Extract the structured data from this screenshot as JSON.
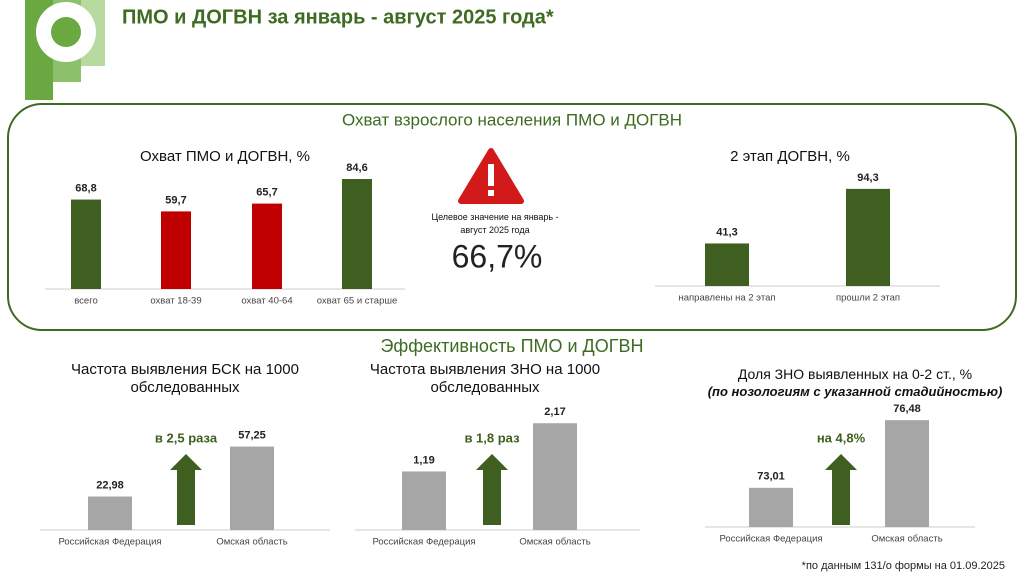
{
  "header": {
    "title": "ПМО и ДОГВН за январь - август 2025 года*"
  },
  "sections": [
    "Охват взрослого населения ПМО и ДОГВН",
    "Эффективность ПМО и ДОГВН"
  ],
  "target": {
    "label": "Целевое значение на январь - август 2025 года",
    "value": "66,7%"
  },
  "footnote": "*по данным 131/о формы на 01.09.2025",
  "chart_data": [
    {
      "type": "bar",
      "title": "Охват ПМО и ДОГВН, %",
      "categories": [
        "всего",
        "охват 18-39",
        "охват 40-64",
        "охват 65 и старше"
      ],
      "values": [
        68.8,
        59.7,
        65.7,
        84.6
      ],
      "value_labels": [
        "68,8",
        "59,7",
        "65,7",
        "84,6"
      ],
      "colors": [
        "#3e5f1f",
        "#c00000",
        "#c00000",
        "#3e5f1f"
      ],
      "ylim": [
        0,
        100
      ]
    },
    {
      "type": "bar",
      "title": "2 этап ДОГВН, %",
      "categories": [
        "направлены на 2 этап",
        "прошли 2 этап"
      ],
      "values": [
        41.3,
        94.3
      ],
      "value_labels": [
        "41,3",
        "94,3"
      ],
      "colors": [
        "#3e5f1f",
        "#3e5f1f"
      ],
      "ylim": [
        0,
        100
      ]
    },
    {
      "type": "bar",
      "title": "Частота выявления БСК на 1000 обследованных",
      "categories": [
        "Российская Федерация",
        "Омская область"
      ],
      "values": [
        22.98,
        57.25
      ],
      "value_labels": [
        "22,98",
        "57,25"
      ],
      "colors": [
        "#a6a6a6",
        "#a6a6a6"
      ],
      "ylim": [
        0,
        70
      ],
      "annotation": "в 2,5 раза"
    },
    {
      "type": "bar",
      "title": "Частота выявления ЗНО на 1000 обследованных",
      "categories": [
        "Российская Федерация",
        "Омская область"
      ],
      "values": [
        1.19,
        2.17
      ],
      "value_labels": [
        "1,19",
        "2,17"
      ],
      "colors": [
        "#a6a6a6",
        "#a6a6a6"
      ],
      "ylim": [
        0,
        2.5
      ],
      "annotation": "в 1,8 раз"
    },
    {
      "type": "bar",
      "title": "Доля ЗНО выявленных на 0-2 ст., %",
      "subtitle": "(по нозологиям с указанной стадийностью)",
      "categories": [
        "Российская Федерация",
        "Омская область"
      ],
      "values": [
        73.01,
        76.48
      ],
      "value_labels": [
        "73,01",
        "76,48"
      ],
      "colors": [
        "#a6a6a6",
        "#a6a6a6"
      ],
      "ylim": [
        71,
        77
      ],
      "annotation": "на 4,8%"
    }
  ]
}
